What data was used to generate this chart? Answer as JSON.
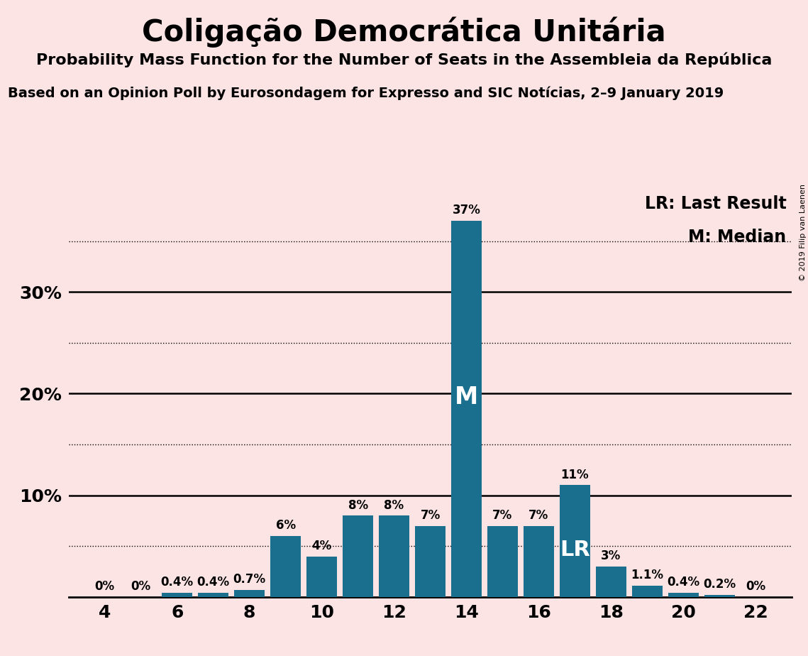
{
  "title": "Coligação Democrática Unitária",
  "subtitle": "Probability Mass Function for the Number of Seats in the Assembleia da República",
  "source": "Based on an Opinion Poll by Eurosondagem for Expresso and SIC Notícias, 2–9 January 2019",
  "copyright": "© 2019 Filip van Laenen",
  "seats": [
    4,
    5,
    6,
    7,
    8,
    9,
    10,
    11,
    12,
    13,
    14,
    15,
    16,
    17,
    18,
    19,
    20,
    21,
    22
  ],
  "probabilities": [
    0.0,
    0.0,
    0.4,
    0.4,
    0.7,
    6.0,
    4.0,
    8.0,
    8.0,
    7.0,
    37.0,
    7.0,
    7.0,
    11.0,
    3.0,
    1.1,
    0.4,
    0.2,
    0.0
  ],
  "labels": [
    "0%",
    "0%",
    "0.4%",
    "0.4%",
    "0.7%",
    "6%",
    "4%",
    "8%",
    "8%",
    "7%",
    "37%",
    "7%",
    "7%",
    "11%",
    "3%",
    "1.1%",
    "0.4%",
    "0.2%",
    "0%"
  ],
  "bar_color": "#1a6e8e",
  "background_color": "#fce4e4",
  "median_seat": 14,
  "lr_seat": 17,
  "ylim_max": 40,
  "solid_yticks": [
    10,
    20,
    30
  ],
  "dotted_yticks": [
    5,
    15,
    25,
    35
  ],
  "ytick_labels": {
    "10": "10%",
    "20": "20%",
    "30": "30%"
  },
  "legend_lr": "LR: Last Result",
  "legend_m": "M: Median",
  "title_fontsize": 30,
  "subtitle_fontsize": 16,
  "source_fontsize": 14,
  "bar_label_fontsize": 12,
  "axis_tick_fontsize": 18,
  "legend_fontsize": 17,
  "M_fontsize": 24,
  "LR_fontsize": 22
}
